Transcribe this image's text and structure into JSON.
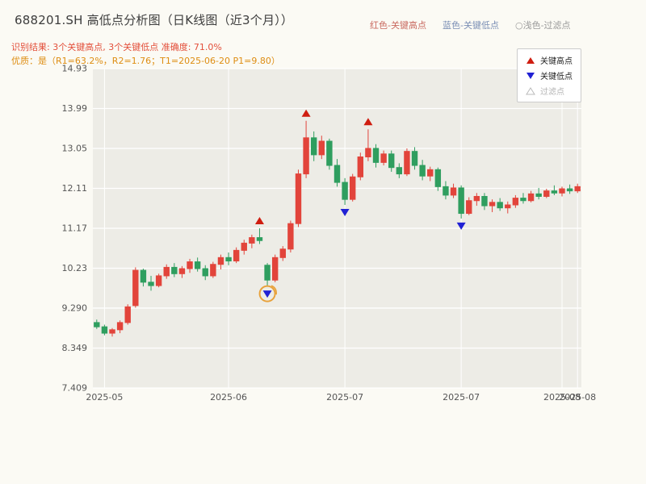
{
  "header": {
    "title": "688201.SH 高低点分析图（日K线图（近3个月））",
    "top_legend": [
      {
        "label": "红色-关键高点",
        "color": "#c96a60"
      },
      {
        "label": "蓝色-关键低点",
        "color": "#7b8fb5"
      },
      {
        "label": "○浅色-过滤点",
        "color": "#9a9a9a"
      }
    ],
    "result_line": "识别结果: 3个关键高点, 3个关键低点  准确度: 71.0%",
    "result_color": "#e34f3a",
    "quality_line": "优质：是（R1=63.2%，R2=1.76；T1=2025-06-20 P1=9.80）",
    "quality_color": "#de8d12"
  },
  "chart_data": {
    "type": "candlestick",
    "title": "688201.SH 高低点分析图（日K线图（近3个月））",
    "ylim": [
      7.409,
      14.93
    ],
    "y_ticks": [
      "14.93",
      "13.99",
      "13.05",
      "12.11",
      "11.17",
      "10.23",
      "9.290",
      "8.349",
      "7.409"
    ],
    "y_tick_values": [
      14.93,
      13.99,
      13.05,
      12.11,
      11.17,
      10.23,
      9.29,
      8.349,
      7.409
    ],
    "x_ticks": [
      {
        "index": 1,
        "label": "2025-05"
      },
      {
        "index": 17,
        "label": "2025-06"
      },
      {
        "index": 32,
        "label": "2025-07"
      },
      {
        "index": 47,
        "label": "2025-07"
      },
      {
        "index": 60,
        "label": "2025-08"
      },
      {
        "index": 62,
        "label": "2025-08"
      }
    ],
    "legend": [
      {
        "icon": "red-up-triangle-icon",
        "label": "关键高点"
      },
      {
        "icon": "blue-down-triangle-icon",
        "label": "关键低点"
      },
      {
        "icon": "hollow-triangle-icon",
        "label": "过滤点"
      }
    ],
    "colors": {
      "plot_bg": "#edece6",
      "grid": "#ffffff",
      "up": "#e2443b",
      "down": "#2f9e5f",
      "marker_high": "#cf1d10",
      "marker_low": "#2121d4",
      "highlight": "#e8a23c",
      "tick_text": "#555555"
    },
    "candles": [
      [
        8.95,
        9.02,
        8.8,
        8.85
      ],
      [
        8.85,
        8.9,
        8.65,
        8.7
      ],
      [
        8.7,
        8.82,
        8.62,
        8.78
      ],
      [
        8.78,
        9.0,
        8.7,
        8.95
      ],
      [
        8.95,
        9.38,
        8.9,
        9.32
      ],
      [
        9.35,
        10.25,
        9.3,
        10.18
      ],
      [
        10.18,
        10.22,
        9.8,
        9.9
      ],
      [
        9.9,
        10.05,
        9.7,
        9.82
      ],
      [
        9.82,
        10.1,
        9.78,
        10.05
      ],
      [
        10.05,
        10.32,
        9.98,
        10.25
      ],
      [
        10.25,
        10.35,
        10.02,
        10.1
      ],
      [
        10.1,
        10.28,
        10.0,
        10.22
      ],
      [
        10.22,
        10.45,
        10.12,
        10.38
      ],
      [
        10.38,
        10.48,
        10.15,
        10.22
      ],
      [
        10.22,
        10.3,
        9.95,
        10.05
      ],
      [
        10.05,
        10.38,
        10.0,
        10.32
      ],
      [
        10.32,
        10.55,
        10.2,
        10.48
      ],
      [
        10.48,
        10.6,
        10.3,
        10.4
      ],
      [
        10.4,
        10.72,
        10.35,
        10.65
      ],
      [
        10.65,
        10.9,
        10.55,
        10.82
      ],
      [
        10.82,
        11.02,
        10.7,
        10.95
      ],
      [
        10.95,
        11.17,
        10.8,
        10.88
      ],
      [
        10.3,
        10.35,
        9.8,
        9.95
      ],
      [
        9.95,
        10.55,
        9.9,
        10.48
      ],
      [
        10.48,
        10.75,
        10.4,
        10.68
      ],
      [
        10.68,
        11.35,
        10.6,
        11.28
      ],
      [
        11.28,
        12.55,
        11.2,
        12.45
      ],
      [
        12.45,
        13.7,
        12.35,
        13.3
      ],
      [
        13.3,
        13.45,
        12.75,
        12.9
      ],
      [
        12.9,
        13.35,
        12.8,
        13.22
      ],
      [
        13.22,
        13.28,
        12.55,
        12.65
      ],
      [
        12.65,
        12.8,
        12.15,
        12.25
      ],
      [
        12.25,
        12.35,
        11.72,
        11.85
      ],
      [
        11.85,
        12.45,
        11.8,
        12.38
      ],
      [
        12.38,
        12.95,
        12.3,
        12.85
      ],
      [
        12.85,
        13.5,
        12.75,
        13.05
      ],
      [
        13.05,
        13.15,
        12.6,
        12.72
      ],
      [
        12.72,
        13.0,
        12.65,
        12.92
      ],
      [
        12.92,
        13.0,
        12.5,
        12.6
      ],
      [
        12.6,
        12.7,
        12.35,
        12.45
      ],
      [
        12.45,
        13.05,
        12.4,
        12.98
      ],
      [
        12.98,
        13.08,
        12.55,
        12.65
      ],
      [
        12.65,
        12.78,
        12.3,
        12.4
      ],
      [
        12.4,
        12.62,
        12.28,
        12.55
      ],
      [
        12.55,
        12.6,
        12.05,
        12.15
      ],
      [
        12.15,
        12.28,
        11.85,
        11.95
      ],
      [
        11.95,
        12.22,
        11.88,
        12.12
      ],
      [
        12.12,
        12.18,
        11.4,
        11.52
      ],
      [
        11.52,
        11.9,
        11.48,
        11.82
      ],
      [
        11.82,
        12.0,
        11.7,
        11.92
      ],
      [
        11.92,
        12.0,
        11.6,
        11.7
      ],
      [
        11.7,
        11.85,
        11.55,
        11.78
      ],
      [
        11.78,
        11.88,
        11.58,
        11.65
      ],
      [
        11.65,
        11.8,
        11.52,
        11.72
      ],
      [
        11.72,
        11.95,
        11.65,
        11.88
      ],
      [
        11.88,
        12.0,
        11.75,
        11.82
      ],
      [
        11.82,
        12.05,
        11.78,
        11.98
      ],
      [
        11.98,
        12.12,
        11.85,
        11.92
      ],
      [
        11.92,
        12.1,
        11.88,
        12.05
      ],
      [
        12.05,
        12.18,
        11.95,
        12.0
      ],
      [
        12.0,
        12.15,
        11.92,
        12.1
      ],
      [
        12.1,
        12.2,
        11.98,
        12.05
      ],
      [
        12.05,
        12.22,
        12.0,
        12.15
      ]
    ],
    "key_highs": [
      {
        "index": 21,
        "price": 11.17
      },
      {
        "index": 27,
        "price": 13.7
      },
      {
        "index": 35,
        "price": 13.5
      }
    ],
    "key_lows": [
      {
        "index": 22,
        "price": 9.8,
        "circled": true
      },
      {
        "index": 32,
        "price": 11.72
      },
      {
        "index": 47,
        "price": 11.4
      }
    ]
  }
}
